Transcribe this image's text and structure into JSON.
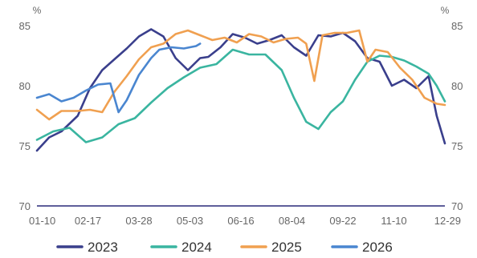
{
  "chart_data": {
    "type": "line",
    "title": "",
    "xlabel": "",
    "ylabel": "%",
    "y2label": "%",
    "ylim": [
      70,
      85
    ],
    "yticks": [
      70,
      75,
      80,
      85
    ],
    "xticks": [
      "01-10",
      "02-17",
      "03-28",
      "05-03",
      "06-16",
      "08-04",
      "09-22",
      "11-10",
      "12-29"
    ],
    "grid": false,
    "legend_position": "bottom",
    "series": [
      {
        "name": "2023",
        "color": "#3a3f8c",
        "x": [
          0,
          0.03,
          0.06,
          0.1,
          0.13,
          0.16,
          0.19,
          0.22,
          0.25,
          0.28,
          0.31,
          0.34,
          0.37,
          0.4,
          0.42,
          0.45,
          0.48,
          0.51,
          0.54,
          0.57,
          0.6,
          0.63,
          0.66,
          0.69,
          0.72,
          0.75,
          0.78,
          0.81,
          0.84,
          0.87,
          0.9,
          0.93,
          0.96,
          0.98,
          1
        ],
        "values": [
          74.6,
          75.7,
          76.2,
          77.5,
          79.8,
          81.3,
          82.2,
          83.1,
          84.1,
          84.7,
          84.1,
          82.3,
          81.3,
          82.3,
          82.4,
          83.2,
          84.3,
          84.0,
          83.5,
          83.8,
          84.2,
          83.2,
          82.5,
          84.2,
          84.1,
          84.4,
          83.7,
          82.3,
          82.0,
          80.0,
          80.5,
          79.8,
          80.8,
          77.5,
          75.2
        ]
      },
      {
        "name": "2024",
        "color": "#3ab5a0",
        "x": [
          0,
          0.04,
          0.08,
          0.12,
          0.16,
          0.2,
          0.24,
          0.28,
          0.32,
          0.36,
          0.4,
          0.44,
          0.48,
          0.52,
          0.56,
          0.6,
          0.63,
          0.66,
          0.69,
          0.72,
          0.75,
          0.78,
          0.81,
          0.84,
          0.87,
          0.9,
          0.93,
          0.96,
          0.98,
          1
        ],
        "values": [
          75.5,
          76.2,
          76.5,
          75.3,
          75.7,
          76.8,
          77.3,
          78.6,
          79.8,
          80.7,
          81.5,
          81.8,
          83.0,
          82.6,
          82.6,
          81.3,
          79.0,
          77.0,
          76.4,
          77.8,
          78.7,
          80.5,
          82.0,
          82.5,
          82.4,
          82.1,
          81.6,
          81.0,
          80.0,
          78.7
        ]
      },
      {
        "name": "2025",
        "color": "#f0a050",
        "x": [
          0,
          0.03,
          0.06,
          0.1,
          0.13,
          0.16,
          0.19,
          0.22,
          0.25,
          0.28,
          0.31,
          0.34,
          0.37,
          0.4,
          0.43,
          0.46,
          0.49,
          0.52,
          0.55,
          0.58,
          0.61,
          0.64,
          0.66,
          0.68,
          0.7,
          0.73,
          0.76,
          0.79,
          0.81,
          0.83,
          0.86,
          0.89,
          0.92,
          0.95,
          0.98,
          1
        ],
        "values": [
          78.0,
          77.2,
          77.9,
          77.9,
          78.0,
          77.8,
          79.5,
          80.8,
          82.2,
          83.2,
          83.5,
          84.3,
          84.6,
          84.2,
          83.8,
          84.0,
          83.6,
          84.3,
          84.1,
          83.6,
          83.9,
          84.0,
          83.5,
          80.4,
          84.2,
          84.4,
          84.4,
          84.6,
          82.0,
          83.0,
          82.8,
          81.5,
          80.5,
          79.0,
          78.5,
          78.4
        ]
      },
      {
        "name": "2026",
        "color": "#4a86d0",
        "x": [
          0,
          0.03,
          0.06,
          0.09,
          0.12,
          0.15,
          0.18,
          0.2,
          0.22,
          0.25,
          0.28,
          0.3,
          0.33,
          0.36,
          0.39,
          0.4
        ],
        "values": [
          79.0,
          79.3,
          78.7,
          79.0,
          79.6,
          80.1,
          80.2,
          77.8,
          78.8,
          80.9,
          82.3,
          83.0,
          83.2,
          83.1,
          83.3,
          83.5
        ]
      }
    ]
  }
}
